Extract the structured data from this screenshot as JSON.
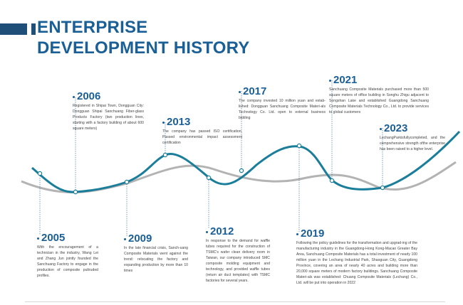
{
  "title": {
    "line1": "ENTERPRISE",
    "line2": "DEVELOPMENT HISTORY"
  },
  "colors": {
    "accent": "#1a5f96",
    "wave_primary": "#1a7e9a",
    "wave_secondary": "#b3b3b3"
  },
  "events": [
    {
      "year": "2005",
      "text": "With the encouragement of a technician in the industry, Wang Lei and Zhang Jun jointly founded the Sanchuang Factory to engage in the production of composite pultruded profiles."
    },
    {
      "year": "2006",
      "text": "Registered in Shipai Town, Dongguan City: Dongguan Shipai Sanchuang Fiber-glass Products Factory (two production lines, starting with a factory building of about 600 square meters)"
    },
    {
      "year": "2009",
      "text": "In the late financial crisis, Sanch-uang Composite Materials went against the trend: relocating the factory and expanding production by more than 10 times"
    },
    {
      "year": "2012",
      "text": "In response to the demand for waffle tubes required for the construction of TSMC's wafer clean delivery room in Taiwan, our company introduced SMC composite molding equipment and technology, and provided waffle tubes (return air duct templates) with TSMC factories for several years."
    },
    {
      "year": "2013",
      "text": "The company has passed ISO certification, Passed environmental impact assessment certification"
    },
    {
      "year": "2017",
      "text": "The company invested 10 million yuan and estab-lished: Dongguan Sanchuang Composite Materi-als Technology Co. Ltd. open to external business bidding"
    },
    {
      "year": "2019",
      "text": "Following the policy guidelines for the transformation and upgrad-ing of the manufacturing industry in the Guangdong-Hong Kong-Macao Greater Bay Area, Sanchuang Composite Materials has a total investment of nearly 100 million yuan in the Lechang Industrial Park, Shaoguan City, Guangdong Province, covering an area of nearly 40 acres and building more than 20,000 square meters of modern factory buildings. Sanchuang Composite Materi-als was established: Chuang Composite Materials (Lechang) Co., Ltd. will be put into operation in 2022"
    },
    {
      "year": "2021",
      "text": "Sanchuang Composite Materials purchased more than 500 square meters of office building in Songhu Zhigu adjacent to Songshan Lake and established Guangdong Sanchuang Composite Materials Technology Co., Ltd. to provide services to global customers"
    },
    {
      "year": "2023",
      "text": "LechangParkisfullycompleted, and the comprehensive strength ofthe enterprise has been raised to a higher level."
    }
  ]
}
